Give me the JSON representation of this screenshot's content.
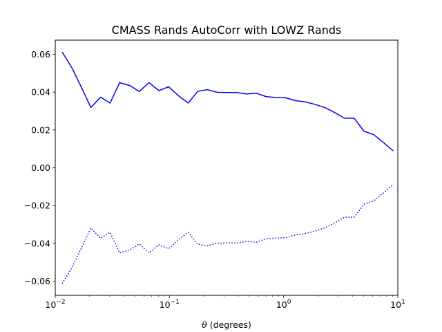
{
  "chart_data": {
    "type": "line",
    "title": "CMASS Rands AutoCorr with LOWZ Rands",
    "xlabel": {
      "symbol": "θ",
      "text": " (degrees)"
    },
    "ylabel": "",
    "xscale": "log",
    "xlim": [
      0.01,
      10
    ],
    "ylim": [
      -0.0675,
      0.0675
    ],
    "grid": false,
    "legend": "none",
    "x_ticks": [
      {
        "value": 0.01,
        "label_base": "10",
        "label_exp": "−2"
      },
      {
        "value": 0.1,
        "label_base": "10",
        "label_exp": "−1"
      },
      {
        "value": 1,
        "label_base": "10",
        "label_exp": "0"
      },
      {
        "value": 10,
        "label_base": "10",
        "label_exp": "1"
      }
    ],
    "y_ticks": [
      {
        "value": 0.06,
        "label": "0.06"
      },
      {
        "value": 0.04,
        "label": "0.04"
      },
      {
        "value": 0.02,
        "label": "0.02"
      },
      {
        "value": 0.0,
        "label": "0.00"
      },
      {
        "value": -0.02,
        "label": "−0.02"
      },
      {
        "value": -0.04,
        "label": "−0.04"
      },
      {
        "value": -0.06,
        "label": "−0.06"
      }
    ],
    "x": [
      0.0115,
      0.0141,
      0.0171,
      0.0205,
      0.025,
      0.0302,
      0.0366,
      0.0449,
      0.0544,
      0.0663,
      0.0808,
      0.0984,
      0.12,
      0.146,
      0.177,
      0.215,
      0.262,
      0.32,
      0.388,
      0.475,
      0.578,
      0.703,
      0.855,
      1.04,
      1.27,
      1.55,
      1.89,
      2.3,
      2.8,
      3.41,
      4.15,
      5.06,
      6.16,
      7.5,
      9.13
    ],
    "series": [
      {
        "color": "#0000ee",
        "style": "solid",
        "values": [
          0.0612,
          0.0525,
          0.042,
          0.0319,
          0.0373,
          0.0342,
          0.045,
          0.0435,
          0.0403,
          0.045,
          0.0408,
          0.0428,
          0.0381,
          0.0342,
          0.0404,
          0.0413,
          0.0399,
          0.0398,
          0.0398,
          0.039,
          0.0394,
          0.0376,
          0.0372,
          0.037,
          0.0355,
          0.0348,
          0.0335,
          0.0318,
          0.0292,
          0.0262,
          0.0262,
          0.0193,
          0.0175,
          0.0133,
          0.0089
        ]
      },
      {
        "color": "#0000ee",
        "style": "dotted",
        "values": [
          -0.0612,
          -0.0525,
          -0.042,
          -0.0319,
          -0.0373,
          -0.0342,
          -0.045,
          -0.0435,
          -0.0403,
          -0.045,
          -0.0408,
          -0.0428,
          -0.0381,
          -0.0342,
          -0.0404,
          -0.0413,
          -0.0399,
          -0.0398,
          -0.0398,
          -0.039,
          -0.0394,
          -0.0376,
          -0.0372,
          -0.037,
          -0.0355,
          -0.0348,
          -0.0335,
          -0.0318,
          -0.0292,
          -0.0262,
          -0.0262,
          -0.0193,
          -0.0175,
          -0.0133,
          -0.0089
        ]
      }
    ]
  }
}
